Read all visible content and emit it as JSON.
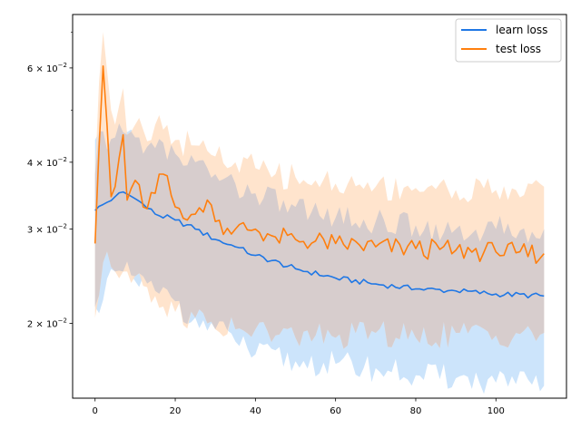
{
  "chart_data": {
    "type": "line",
    "title": "",
    "xlabel": "",
    "ylabel": "",
    "xlim": [
      -5.6,
      117.6
    ],
    "ylim": [
      0.0145,
      0.0755
    ],
    "yscale": "log",
    "grid": false,
    "legend_position": "top-right",
    "x_ticks": [
      0,
      20,
      40,
      60,
      80,
      100
    ],
    "x_tick_labels": [
      "0",
      "20",
      "40",
      "60",
      "80",
      "100"
    ],
    "y_ticks": [
      0.02,
      0.03,
      0.04,
      0.06
    ],
    "y_tick_labels": [
      {
        "base": "2",
        "exp": "−2"
      },
      {
        "base": "3",
        "exp": "−2"
      },
      {
        "base": "4",
        "exp": "−2"
      },
      {
        "base": "6",
        "exp": "−2"
      }
    ],
    "y_minor_ticks": [
      0.05,
      0.07
    ],
    "colors": {
      "learn_line": "#1f77e5",
      "learn_band": "#cce4fb",
      "test_line": "#ff7f0e",
      "test_band": "#ffdfc4",
      "overlap_band": "#d7cdcd"
    },
    "series": [
      {
        "name": "learn loss",
        "x": [
          0,
          5,
          7,
          10,
          15,
          20,
          25,
          30,
          35,
          40,
          50,
          60,
          70,
          80,
          90,
          100,
          112
        ],
        "values": [
          0.0325,
          0.0345,
          0.0352,
          0.0342,
          0.032,
          0.0312,
          0.03,
          0.0287,
          0.0278,
          0.0268,
          0.0253,
          0.0243,
          0.0237,
          0.0232,
          0.023,
          0.0227,
          0.0225
        ],
        "lower": [
          0.0215,
          0.025,
          0.025,
          0.024,
          0.023,
          0.022,
          0.0205,
          0.0195,
          0.0185,
          0.0175,
          0.017,
          0.0168,
          0.0165,
          0.016,
          0.0158,
          0.0155,
          0.0153
        ],
        "upper": [
          0.044,
          0.0445,
          0.0455,
          0.0445,
          0.0425,
          0.0415,
          0.04,
          0.038,
          0.0365,
          0.035,
          0.033,
          0.0315,
          0.031,
          0.0305,
          0.03,
          0.03,
          0.03
        ]
      },
      {
        "name": "test loss",
        "x": [
          0,
          2,
          4,
          5,
          7,
          8,
          10,
          12,
          15,
          17,
          20,
          25,
          28,
          30,
          35,
          40,
          45,
          50,
          55,
          60,
          70,
          80,
          90,
          100,
          105,
          112
        ],
        "values": [
          0.0282,
          0.0605,
          0.0345,
          0.036,
          0.045,
          0.034,
          0.037,
          0.033,
          0.035,
          0.038,
          0.033,
          0.032,
          0.034,
          0.031,
          0.03,
          0.03,
          0.029,
          0.0287,
          0.0285,
          0.0282,
          0.0278,
          0.0276,
          0.0274,
          0.0272,
          0.0271,
          0.027
        ],
        "lower": [
          0.0205,
          0.026,
          0.0255,
          0.025,
          0.025,
          0.025,
          0.0245,
          0.0235,
          0.0225,
          0.0215,
          0.021,
          0.0205,
          0.02,
          0.0195,
          0.0195,
          0.0195,
          0.019,
          0.0188,
          0.019,
          0.0188,
          0.0192,
          0.0188,
          0.0192,
          0.019,
          0.0192,
          0.0192
        ],
        "upper": [
          0.038,
          0.07,
          0.05,
          0.047,
          0.055,
          0.045,
          0.047,
          0.046,
          0.047,
          0.046,
          0.044,
          0.043,
          0.042,
          0.041,
          0.04,
          0.039,
          0.038,
          0.0375,
          0.037,
          0.0365,
          0.036,
          0.0358,
          0.0355,
          0.0355,
          0.0355,
          0.036
        ]
      }
    ]
  }
}
